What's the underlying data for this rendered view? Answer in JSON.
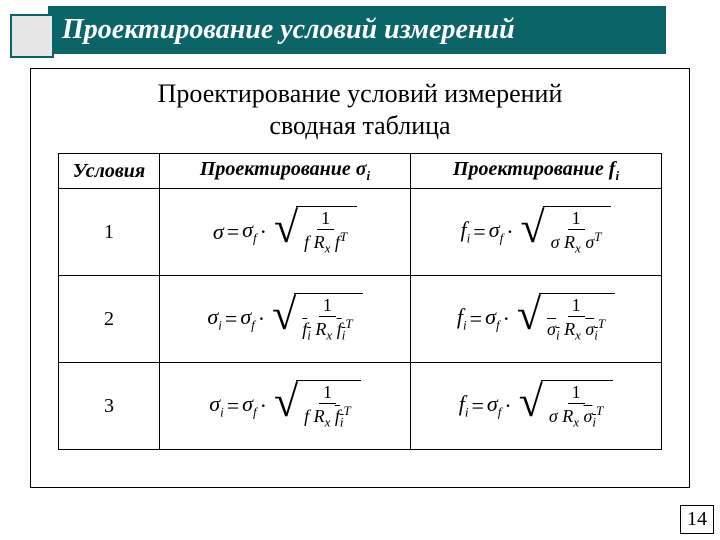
{
  "colors": {
    "title_bg": "#0b6468",
    "title_text": "#ffffff",
    "decor_fill": "#e6e6e6",
    "decor_border": "#0b6468",
    "border": "#000000",
    "bg": "#ffffff"
  },
  "title": "Проектирование условий измерений",
  "subtitle1": "Проектирование условий измерений",
  "subtitle2": "сводная таблица",
  "page_number": "14",
  "table": {
    "headers": {
      "cond": "Условия",
      "sigma_label": "Проектирование σ",
      "sigma_sub": "i",
      "f_label": "Проектирование f",
      "f_sub": "i"
    },
    "rows": [
      {
        "cond": "1",
        "sigma": {
          "lhs": "σ",
          "den": "f R<sub class=\"sub\">x</sub> f<span class=\"sup\">T</span>"
        },
        "f": {
          "lhs": "f<sub class=\"sub\">i</sub>",
          "den": "σ R<sub class=\"sub\">x</sub> σ<span class=\"sup\">T</span>"
        }
      },
      {
        "cond": "2",
        "sigma": {
          "lhs": "σ<sub class=\"sub\">i</sub>",
          "den": "<span class=\"bar\">f<sub class=\"sub\">i</sub></span> R<sub class=\"sub\">x</sub> <span class=\"bar\">f<sub class=\"sub\">i</sub></span><span class=\"sup\">T</span>"
        },
        "f": {
          "lhs": "f<sub class=\"sub\">i</sub>",
          "den": "<span class=\"bar\">σ<sub class=\"sub\">i</sub></span> R<sub class=\"sub\">x</sub> <span class=\"bar\">σ<sub class=\"sub\">i</sub></span><span class=\"sup\">T</span>"
        }
      },
      {
        "cond": "3",
        "sigma": {
          "lhs": "σ<sub class=\"sub\">i</sub>",
          "den": "f R<sub class=\"sub\">x</sub> <span class=\"bar\">f<sub class=\"sub\">i</sub></span><span class=\"sup\">T</span>"
        },
        "f": {
          "lhs": "f<sub class=\"sub\">i</sub>",
          "den": "σ R<sub class=\"sub\">x</sub> <span class=\"bar\">σ<sub class=\"sub\">i</sub></span><span class=\"sup\">T</span>"
        }
      }
    ],
    "rhs_coeff": "σ<sub class=\"sub\">f</sub>",
    "numerator": "1"
  }
}
